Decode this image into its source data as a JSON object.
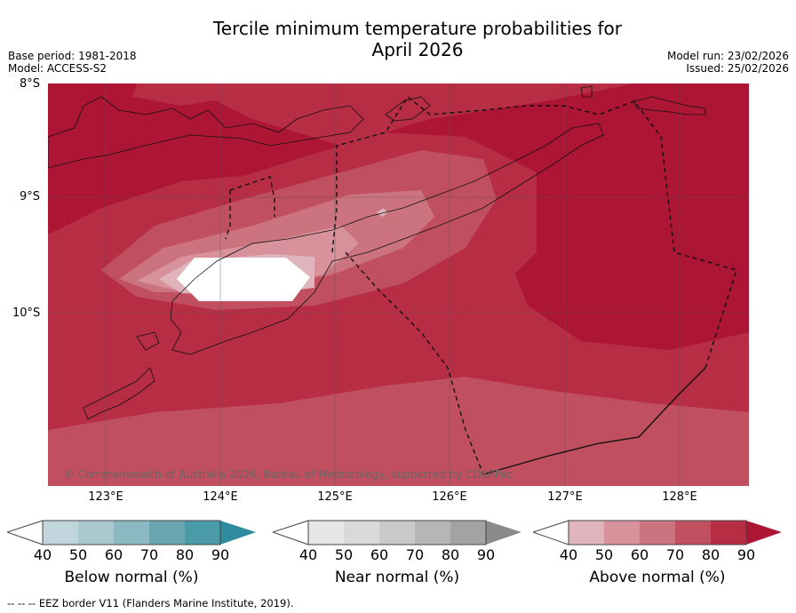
{
  "header": {
    "title_line1": "Tercile minimum temperature probabilities for",
    "title_line2": "April 2026",
    "base_period": "Base period: 1981-2018",
    "model": "Model: ACCESS-S2",
    "model_run": "Model run: 23/02/2026",
    "issued": "Issued: 25/02/2026"
  },
  "map": {
    "lat_labels": [
      "8°S",
      "9°S",
      "10°S"
    ],
    "lon_labels": [
      "123°E",
      "124°E",
      "125°E",
      "126°E",
      "127°E",
      "128°E"
    ],
    "copyright": "© Commonwealth of Australia 2026, Bureau of Meteorology, supported by COSPPac"
  },
  "colorbars": [
    {
      "label": "Below normal (%)",
      "ticks": [
        "40",
        "50",
        "60",
        "70",
        "80",
        "90"
      ],
      "colors": [
        "#c0d6dc",
        "#a9c9cf",
        "#8cb8c1",
        "#6aa6b1",
        "#4a9aa8",
        "#2f8c9e"
      ]
    },
    {
      "label": "Near normal (%)",
      "ticks": [
        "40",
        "50",
        "60",
        "70",
        "80",
        "90"
      ],
      "colors": [
        "#e6e6e6",
        "#d9d9d9",
        "#c9c9c9",
        "#b6b6b6",
        "#a3a3a3",
        "#8a8a8a"
      ]
    },
    {
      "label": "Above normal (%)",
      "ticks": [
        "40",
        "50",
        "60",
        "70",
        "80",
        "90"
      ],
      "colors": [
        "#e0b4bc",
        "#d7929c",
        "#cb7480",
        "#c0505f",
        "#b62d44",
        "#ad1535"
      ]
    }
  ],
  "footer": "--  --  -- EEZ border V11 (Flanders Marine Institute, 2019)."
}
